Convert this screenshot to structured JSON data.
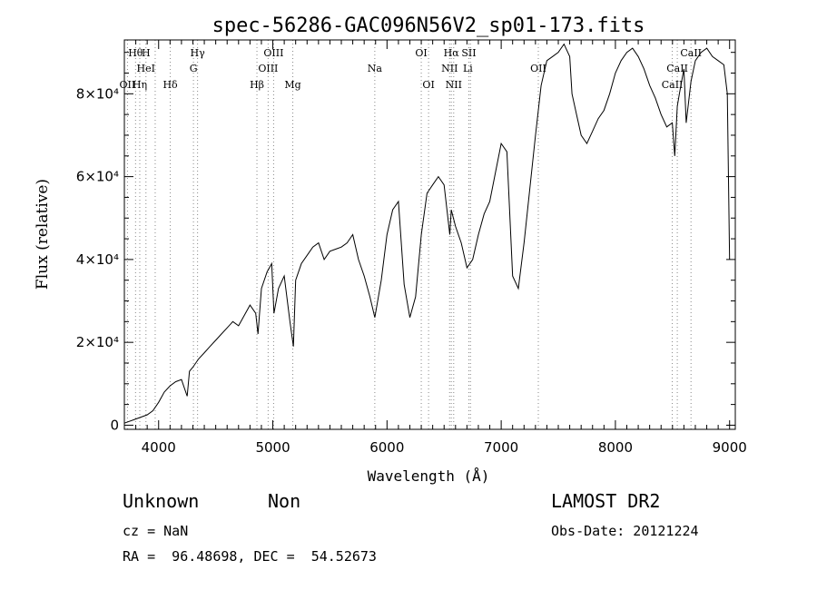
{
  "chart_data": {
    "type": "line",
    "title": "spec-56286-GAC096N56V2_sp01-173.fits",
    "xlabel": "Wavelength (Å)",
    "ylabel": "Flux (relative)",
    "xlim": [
      3700,
      9050
    ],
    "ylim": [
      -1000,
      93000
    ],
    "x_ticks": [
      4000,
      5000,
      6000,
      7000,
      8000,
      9000
    ],
    "x_tick_labels": [
      "4000",
      "5000",
      "6000",
      "7000",
      "8000",
      "9000"
    ],
    "y_ticks": [
      0,
      20000,
      40000,
      60000,
      80000
    ],
    "y_tick_labels": [
      "0",
      "2×10⁴",
      "4×10⁴",
      "6×10⁴",
      "8×10⁴"
    ],
    "grid": false,
    "series": [
      {
        "color": "#000000",
        "x": [
          3700,
          3800,
          3900,
          3950,
          4000,
          4050,
          4100,
          4150,
          4200,
          4250,
          4270,
          4300,
          4350,
          4400,
          4450,
          4500,
          4550,
          4600,
          4650,
          4700,
          4750,
          4800,
          4850,
          4870,
          4900,
          4950,
          4990,
          5010,
          5050,
          5100,
          5150,
          5180,
          5200,
          5250,
          5300,
          5350,
          5400,
          5450,
          5500,
          5550,
          5600,
          5650,
          5700,
          5750,
          5800,
          5850,
          5893,
          5950,
          6000,
          6050,
          6100,
          6150,
          6200,
          6250,
          6300,
          6350,
          6400,
          6450,
          6500,
          6550,
          6563,
          6600,
          6650,
          6700,
          6750,
          6800,
          6850,
          6900,
          6950,
          7000,
          7050,
          7100,
          7150,
          7200,
          7250,
          7300,
          7350,
          7400,
          7450,
          7500,
          7550,
          7600,
          7620,
          7660,
          7700,
          7750,
          7800,
          7850,
          7900,
          7950,
          8000,
          8050,
          8100,
          8150,
          8200,
          8250,
          8300,
          8350,
          8400,
          8450,
          8498,
          8520,
          8542,
          8560,
          8600,
          8620,
          8662,
          8700,
          8750,
          8800,
          8850,
          8900,
          8950,
          8980,
          9000
        ],
        "y": [
          500,
          1500,
          2500,
          3500,
          5500,
          8000,
          9500,
          10500,
          11000,
          7000,
          13000,
          14000,
          16000,
          17500,
          19000,
          20500,
          22000,
          23500,
          25000,
          24000,
          26500,
          29000,
          27000,
          22000,
          33000,
          37000,
          39000,
          27000,
          33000,
          36000,
          25000,
          19000,
          35000,
          39000,
          41000,
          43000,
          44000,
          40000,
          42000,
          42500,
          43000,
          44000,
          46000,
          40000,
          36000,
          31000,
          26000,
          35000,
          46000,
          52000,
          54000,
          34000,
          26000,
          31000,
          46000,
          56000,
          58000,
          60000,
          58000,
          46000,
          52000,
          48000,
          44000,
          38000,
          40000,
          46000,
          51000,
          54000,
          61000,
          68000,
          66000,
          36000,
          33000,
          44000,
          57000,
          70000,
          82000,
          88000,
          89000,
          90000,
          92000,
          89000,
          80000,
          75000,
          70000,
          68000,
          71000,
          74000,
          76000,
          80000,
          85000,
          88000,
          90000,
          91000,
          89000,
          86000,
          82000,
          79000,
          75000,
          72000,
          73000,
          65000,
          77000,
          80000,
          86000,
          73000,
          83000,
          88000,
          90000,
          91000,
          89000,
          88000,
          87000,
          80000,
          40000
        ]
      }
    ],
    "annotations": [
      {
        "text": "Hθ",
        "x": 3798,
        "row": 1
      },
      {
        "text": "H",
        "x": 3889,
        "row": 1
      },
      {
        "text": "Hγ",
        "x": 4341,
        "row": 1
      },
      {
        "text": "OIII",
        "x": 5007,
        "row": 1
      },
      {
        "text": "OI",
        "x": 6300,
        "row": 1
      },
      {
        "text": "Hα",
        "x": 6563,
        "row": 1
      },
      {
        "text": "SII",
        "x": 6717,
        "row": 1
      },
      {
        "text": "CaII",
        "x": 8662,
        "row": 1
      },
      {
        "text": "HeI",
        "x": 3889,
        "row": 2
      },
      {
        "text": "G",
        "x": 4305,
        "row": 2
      },
      {
        "text": "OIII",
        "x": 4959,
        "row": 2
      },
      {
        "text": "Na",
        "x": 5893,
        "row": 2
      },
      {
        "text": "NII",
        "x": 6548,
        "row": 2
      },
      {
        "text": "Li",
        "x": 6708,
        "row": 2
      },
      {
        "text": "OII",
        "x": 7325,
        "row": 2
      },
      {
        "text": "CaII",
        "x": 8542,
        "row": 2
      },
      {
        "text": "OII",
        "x": 3727,
        "row": 3
      },
      {
        "text": "Hη",
        "x": 3835,
        "row": 3
      },
      {
        "text": "Hδ",
        "x": 4102,
        "row": 3
      },
      {
        "text": "Hβ",
        "x": 4861,
        "row": 3
      },
      {
        "text": "Mg",
        "x": 5175,
        "row": 3
      },
      {
        "text": "OI",
        "x": 6364,
        "row": 3
      },
      {
        "text": "NII",
        "x": 6584,
        "row": 3
      },
      {
        "text": "CaII",
        "x": 8498,
        "row": 3
      }
    ],
    "line_markers": [
      3727,
      3798,
      3835,
      3889,
      3970,
      4102,
      4305,
      4341,
      4861,
      4959,
      5007,
      5175,
      5893,
      6300,
      6364,
      6548,
      6563,
      6584,
      6717,
      6731,
      7325,
      8498,
      8542,
      8662
    ]
  },
  "footer": {
    "object_class": "Unknown",
    "object_subclass": "Non",
    "survey": "LAMOST DR2",
    "redshift": "cz = NaN",
    "obs_date": "Obs-Date: 20121224",
    "coords": "RA =  96.48698, DEC =  54.52673"
  }
}
